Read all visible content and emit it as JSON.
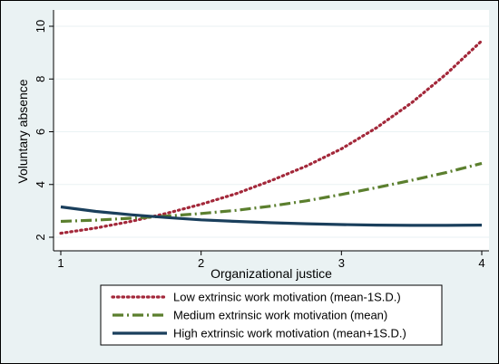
{
  "chart_data": {
    "type": "line",
    "xlabel": "Organizational justice",
    "ylabel": "Voluntary absence",
    "xlim": [
      1,
      4
    ],
    "ylim": [
      2,
      10
    ],
    "xticks": [
      "1",
      "2",
      "3",
      "4"
    ],
    "yticks": [
      "2",
      "4",
      "6",
      "8",
      "10"
    ],
    "grid": "horizontal",
    "legend_position": "bottom",
    "series": [
      {
        "name": "Low extrinsic work motivation (mean-1S.D.)",
        "color": "#a3283a",
        "style": "dotted",
        "x": [
          1.0,
          1.25,
          1.5,
          1.75,
          2.0,
          2.25,
          2.5,
          2.75,
          3.0,
          3.25,
          3.5,
          3.75,
          4.0
        ],
        "y": [
          2.15,
          2.35,
          2.6,
          2.9,
          3.25,
          3.65,
          4.15,
          4.7,
          5.35,
          6.15,
          7.1,
          8.2,
          9.45
        ]
      },
      {
        "name": "Medium extrinsic work motivation (mean)",
        "color": "#5b7f2e",
        "style": "dashdot",
        "x": [
          1.0,
          1.25,
          1.5,
          1.75,
          2.0,
          2.25,
          2.5,
          2.75,
          3.0,
          3.25,
          3.5,
          3.75,
          4.0
        ],
        "y": [
          2.6,
          2.65,
          2.72,
          2.8,
          2.9,
          3.02,
          3.18,
          3.38,
          3.62,
          3.88,
          4.16,
          4.46,
          4.8
        ]
      },
      {
        "name": "High extrinsic work motivation (mean+1S.D.)",
        "color": "#1a3f5c",
        "style": "solid",
        "x": [
          1.0,
          1.25,
          1.5,
          1.75,
          2.0,
          2.25,
          2.5,
          2.75,
          3.0,
          3.25,
          3.5,
          3.75,
          4.0
        ],
        "y": [
          3.15,
          2.98,
          2.85,
          2.75,
          2.66,
          2.6,
          2.55,
          2.51,
          2.48,
          2.46,
          2.45,
          2.45,
          2.46
        ]
      }
    ]
  }
}
